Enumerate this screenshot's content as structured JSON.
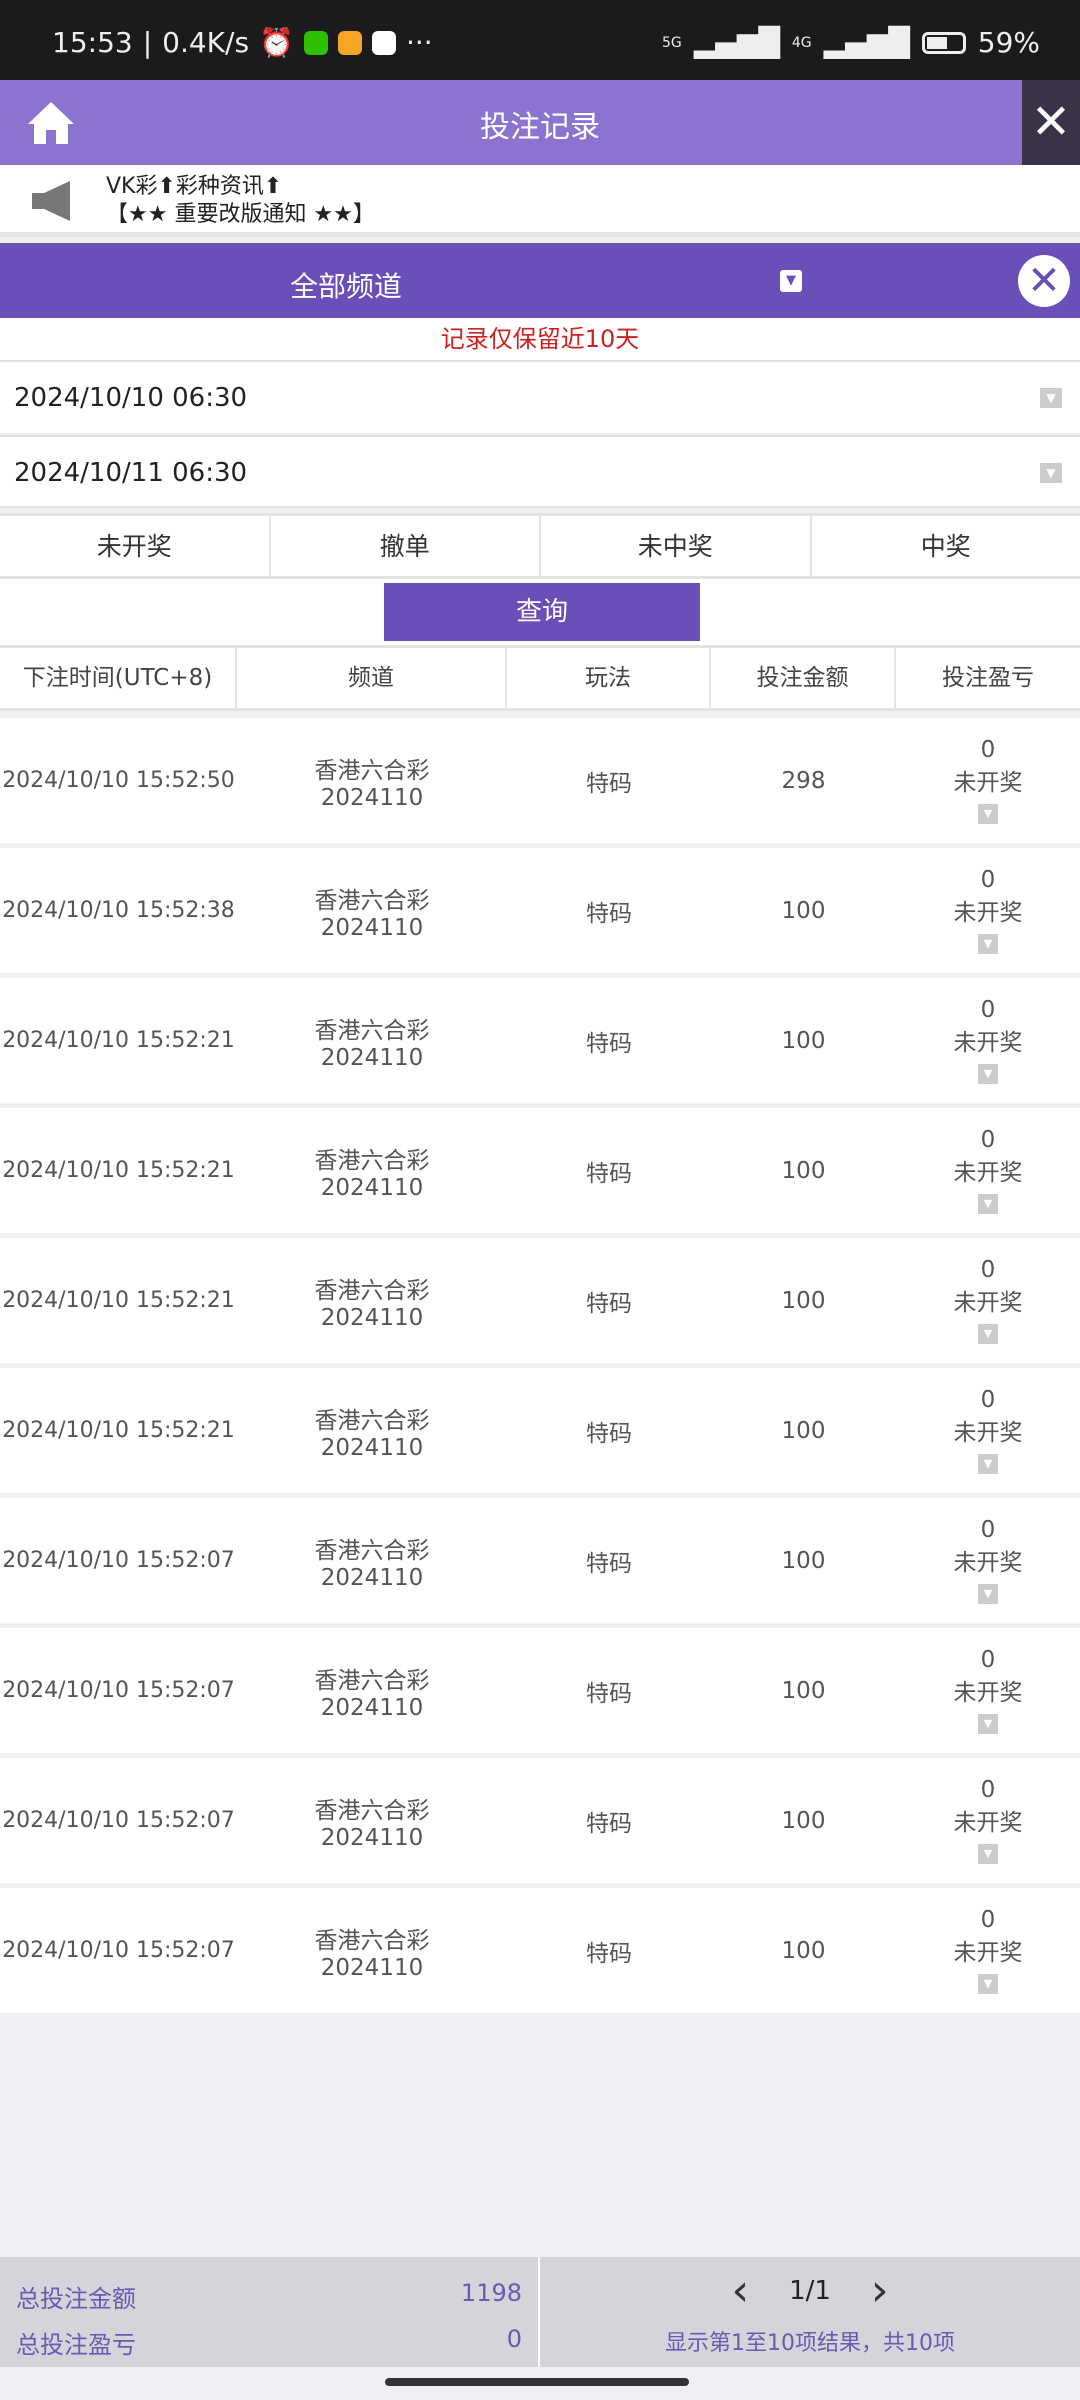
{
  "status_bar": {
    "time": "15:53",
    "speed": "0.4K/s",
    "more": "···",
    "battery": "59%",
    "net1": "5G",
    "net2": "4G"
  },
  "header": {
    "title": "投注记录",
    "close": "✕"
  },
  "notice": {
    "line1": "VK彩⬆彩种资讯⬆",
    "line2": "【★★ 重要改版通知 ★★】"
  },
  "channel": {
    "label": "全部频道"
  },
  "retention_note": "记录仅保留近10天",
  "date_from": "2024/10/10 06:30",
  "date_to": "2024/10/11 06:30",
  "filter_tabs": [
    "未开奖",
    "撤单",
    "未中奖",
    "中奖"
  ],
  "query_button": "查询",
  "table": {
    "headers": [
      "下注时间(UTC+8)",
      "频道",
      "玩法",
      "投注金额",
      "投注盈亏"
    ],
    "rows": [
      {
        "time": "2024/10/10 15:52:50",
        "channel": "香港六合彩",
        "issue": "2024110",
        "play": "特码",
        "amount": "298",
        "profit": "0",
        "status": "未开奖"
      },
      {
        "time": "2024/10/10 15:52:38",
        "channel": "香港六合彩",
        "issue": "2024110",
        "play": "特码",
        "amount": "100",
        "profit": "0",
        "status": "未开奖"
      },
      {
        "time": "2024/10/10 15:52:21",
        "channel": "香港六合彩",
        "issue": "2024110",
        "play": "特码",
        "amount": "100",
        "profit": "0",
        "status": "未开奖"
      },
      {
        "time": "2024/10/10 15:52:21",
        "channel": "香港六合彩",
        "issue": "2024110",
        "play": "特码",
        "amount": "100",
        "profit": "0",
        "status": "未开奖"
      },
      {
        "time": "2024/10/10 15:52:21",
        "channel": "香港六合彩",
        "issue": "2024110",
        "play": "特码",
        "amount": "100",
        "profit": "0",
        "status": "未开奖"
      },
      {
        "time": "2024/10/10 15:52:21",
        "channel": "香港六合彩",
        "issue": "2024110",
        "play": "特码",
        "amount": "100",
        "profit": "0",
        "status": "未开奖"
      },
      {
        "time": "2024/10/10 15:52:07",
        "channel": "香港六合彩",
        "issue": "2024110",
        "play": "特码",
        "amount": "100",
        "profit": "0",
        "status": "未开奖"
      },
      {
        "time": "2024/10/10 15:52:07",
        "channel": "香港六合彩",
        "issue": "2024110",
        "play": "特码",
        "amount": "100",
        "profit": "0",
        "status": "未开奖"
      },
      {
        "time": "2024/10/10 15:52:07",
        "channel": "香港六合彩",
        "issue": "2024110",
        "play": "特码",
        "amount": "100",
        "profit": "0",
        "status": "未开奖"
      },
      {
        "time": "2024/10/10 15:52:07",
        "channel": "香港六合彩",
        "issue": "2024110",
        "play": "特码",
        "amount": "100",
        "profit": "0",
        "status": "未开奖"
      }
    ]
  },
  "footer": {
    "total_bet_label": "总投注金额",
    "total_bet": "1198",
    "total_profit_label": "总投注盈亏",
    "total_profit": "0",
    "page": "1/1",
    "prev": "‹",
    "next": "›",
    "summary": "显示第1至10项结果，共10项"
  },
  "colors": {
    "header": "#8b73d0",
    "accent": "#6a4fb8",
    "note": "#cc2222"
  }
}
